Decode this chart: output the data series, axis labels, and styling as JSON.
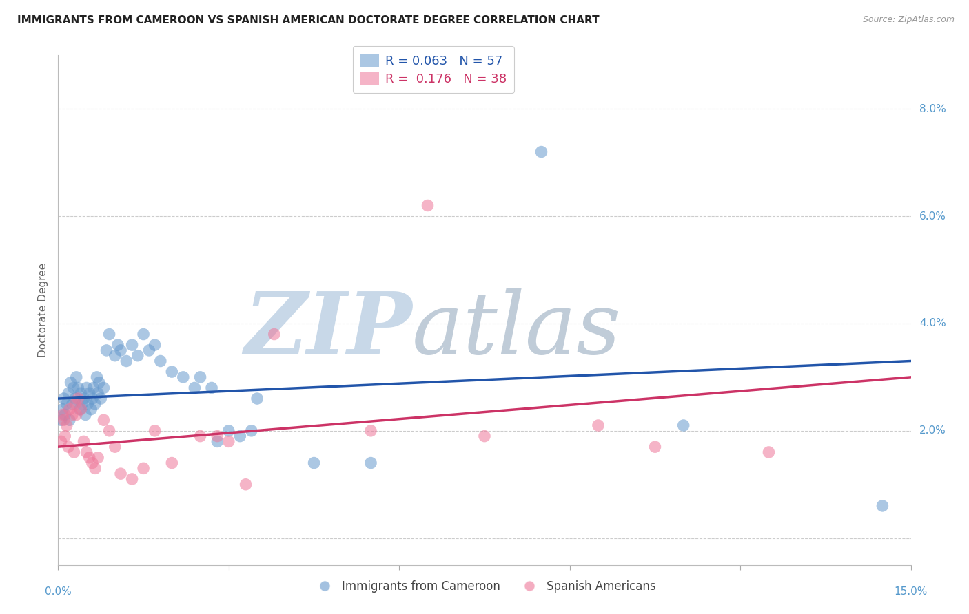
{
  "title": "IMMIGRANTS FROM CAMEROON VS SPANISH AMERICAN DOCTORATE DEGREE CORRELATION CHART",
  "source": "Source: ZipAtlas.com",
  "ylabel": "Doctorate Degree",
  "xmin": 0.0,
  "xmax": 15.0,
  "ymin": -0.5,
  "ymax": 9.0,
  "blue_color": "#6699cc",
  "pink_color": "#ee7799",
  "blue_line_color": "#2255aa",
  "pink_line_color": "#cc3366",
  "background_color": "#ffffff",
  "grid_color": "#cccccc",
  "title_fontsize": 11,
  "axis_label_color": "#5599cc",
  "watermark_zip_color": "#c8d8e8",
  "watermark_atlas_color": "#c0ccd8",
  "blue_label": "Immigrants from Cameroon",
  "pink_label": "Spanish Americans",
  "blue_R": "0.063",
  "blue_N": "57",
  "pink_R": "0.176",
  "pink_N": "38",
  "blue_x": [
    0.05,
    0.08,
    0.1,
    0.12,
    0.15,
    0.18,
    0.2,
    0.22,
    0.25,
    0.27,
    0.3,
    0.32,
    0.35,
    0.38,
    0.4,
    0.42,
    0.45,
    0.48,
    0.5,
    0.52,
    0.55,
    0.58,
    0.6,
    0.62,
    0.65,
    0.68,
    0.7,
    0.72,
    0.75,
    0.8,
    0.85,
    0.9,
    1.0,
    1.05,
    1.1,
    1.2,
    1.3,
    1.4,
    1.5,
    1.6,
    1.7,
    1.8,
    2.0,
    2.2,
    2.4,
    2.5,
    2.7,
    2.8,
    3.0,
    3.2,
    3.4,
    3.5,
    4.5,
    5.5,
    8.5,
    11.0,
    14.5
  ],
  "blue_y": [
    2.2,
    2.4,
    2.6,
    2.3,
    2.5,
    2.7,
    2.2,
    2.9,
    2.5,
    2.8,
    2.6,
    3.0,
    2.8,
    2.4,
    2.7,
    2.5,
    2.6,
    2.3,
    2.8,
    2.5,
    2.7,
    2.4,
    2.6,
    2.8,
    2.5,
    3.0,
    2.7,
    2.9,
    2.6,
    2.8,
    3.5,
    3.8,
    3.4,
    3.6,
    3.5,
    3.3,
    3.6,
    3.4,
    3.8,
    3.5,
    3.6,
    3.3,
    3.1,
    3.0,
    2.8,
    3.0,
    2.8,
    1.8,
    2.0,
    1.9,
    2.0,
    2.6,
    1.4,
    1.4,
    7.2,
    2.1,
    0.6
  ],
  "pink_x": [
    0.05,
    0.08,
    0.1,
    0.12,
    0.15,
    0.18,
    0.2,
    0.25,
    0.28,
    0.3,
    0.32,
    0.35,
    0.4,
    0.45,
    0.5,
    0.55,
    0.6,
    0.65,
    0.7,
    0.8,
    0.9,
    1.0,
    1.1,
    1.3,
    1.5,
    1.7,
    2.0,
    2.5,
    2.8,
    3.0,
    3.3,
    3.8,
    5.5,
    6.5,
    7.5,
    9.5,
    10.5,
    12.5
  ],
  "pink_y": [
    1.8,
    2.3,
    2.2,
    1.9,
    2.1,
    1.7,
    2.4,
    2.3,
    1.6,
    2.5,
    2.3,
    2.6,
    2.4,
    1.8,
    1.6,
    1.5,
    1.4,
    1.3,
    1.5,
    2.2,
    2.0,
    1.7,
    1.2,
    1.1,
    1.3,
    2.0,
    1.4,
    1.9,
    1.9,
    1.8,
    1.0,
    3.8,
    2.0,
    6.2,
    1.9,
    2.1,
    1.7,
    1.6
  ],
  "ytick_values": [
    0.0,
    2.0,
    4.0,
    6.0,
    8.0
  ],
  "ytick_labels": [
    "",
    "2.0%",
    "4.0%",
    "6.0%",
    "8.0%"
  ],
  "xtick_positions": [
    0,
    3,
    6,
    9,
    12,
    15
  ],
  "xtick_show": {
    "0": "0.0%",
    "15": "15.0%"
  },
  "blue_trend_start": 2.6,
  "blue_trend_end": 3.3,
  "pink_trend_start": 1.7,
  "pink_trend_end": 3.0
}
